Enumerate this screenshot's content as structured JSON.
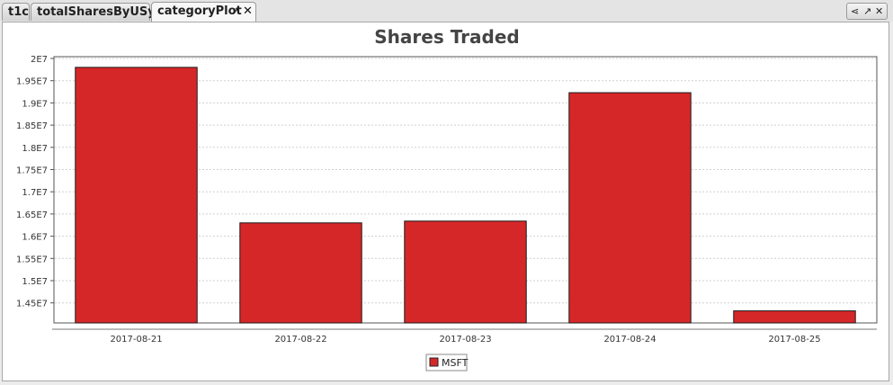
{
  "tabs": [
    {
      "label": "t1c"
    },
    {
      "label": "totalSharesByUSym"
    },
    {
      "label": "categoryPlot"
    }
  ],
  "colors": {
    "bar": "#d62728",
    "grid": "#d0d0d0"
  },
  "icons": {
    "tab_popout": "popout-icon",
    "tab_close": "close-icon",
    "window_share": "share-icon",
    "window_popout": "popout-icon",
    "window_close": "close-icon"
  },
  "chart_data": {
    "type": "bar",
    "title": "Shares Traded",
    "xlabel": "",
    "ylabel": "",
    "categories": [
      "2017-08-21",
      "2017-08-22",
      "2017-08-23",
      "2017-08-24",
      "2017-08-25"
    ],
    "series": [
      {
        "name": "MSFT",
        "values": [
          19800000,
          16300000,
          16340000,
          19230000,
          14320000
        ]
      }
    ],
    "ylim": [
      14000000,
      20000000
    ],
    "yticks": [
      14500000,
      15000000,
      15500000,
      16000000,
      16500000,
      17000000,
      17500000,
      18000000,
      18500000,
      19000000,
      19500000,
      20000000
    ],
    "ytick_labels": [
      "1.45E7",
      "1.5E7",
      "1.55E7",
      "1.6E7",
      "1.65E7",
      "1.7E7",
      "1.75E7",
      "1.8E7",
      "1.85E7",
      "1.9E7",
      "1.95E7",
      "2E7"
    ],
    "grid": true,
    "legend_position": "bottom"
  }
}
